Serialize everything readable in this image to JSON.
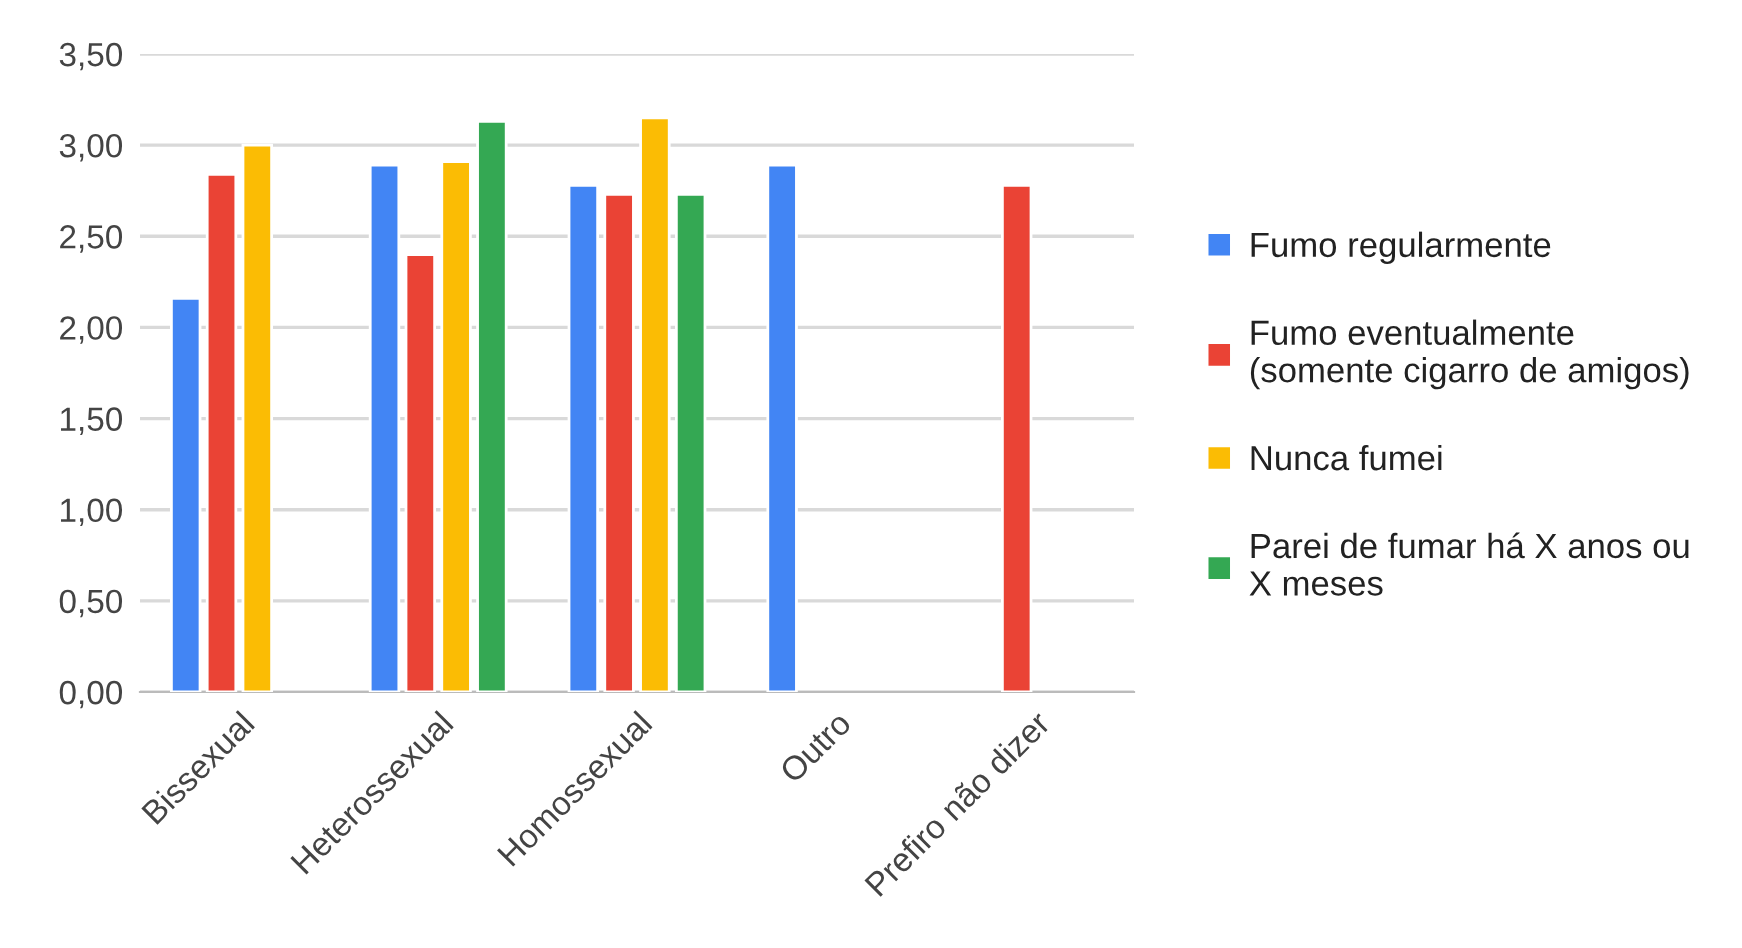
{
  "chart_data": {
    "type": "bar",
    "categories": [
      "Bissexual",
      "Heterossexual",
      "Homossexual",
      "Outro",
      "Prefiro não dizer"
    ],
    "series": [
      {
        "name": "Fumo regularmente",
        "color": "#4285f4",
        "values": [
          2.16,
          2.89,
          2.78,
          2.89,
          null
        ]
      },
      {
        "name": "Fumo eventualmente\n(somente cigarro de amigos)",
        "color": "#ea4335",
        "values": [
          2.84,
          2.4,
          2.73,
          null,
          2.78
        ]
      },
      {
        "name": "Nunca fumei",
        "color": "#fbbc04",
        "values": [
          3.0,
          2.91,
          3.15,
          null,
          null
        ]
      },
      {
        "name": "Parei de fumar há X anos ou\nX meses",
        "color": "#34a853",
        "values": [
          null,
          3.13,
          2.73,
          null,
          null
        ]
      }
    ],
    "ylim": [
      0,
      3.5
    ],
    "yticks": [
      {
        "value": 0,
        "label": "0,00"
      },
      {
        "value": 0.5,
        "label": "0,50"
      },
      {
        "value": 1,
        "label": "1,00"
      },
      {
        "value": 1.5,
        "label": "1,50"
      },
      {
        "value": 2,
        "label": "2,00"
      },
      {
        "value": 2.5,
        "label": "2,50"
      },
      {
        "value": 3,
        "label": "3,00"
      },
      {
        "value": 3.5,
        "label": "3,50"
      }
    ],
    "grid": "y",
    "legend": "right"
  }
}
